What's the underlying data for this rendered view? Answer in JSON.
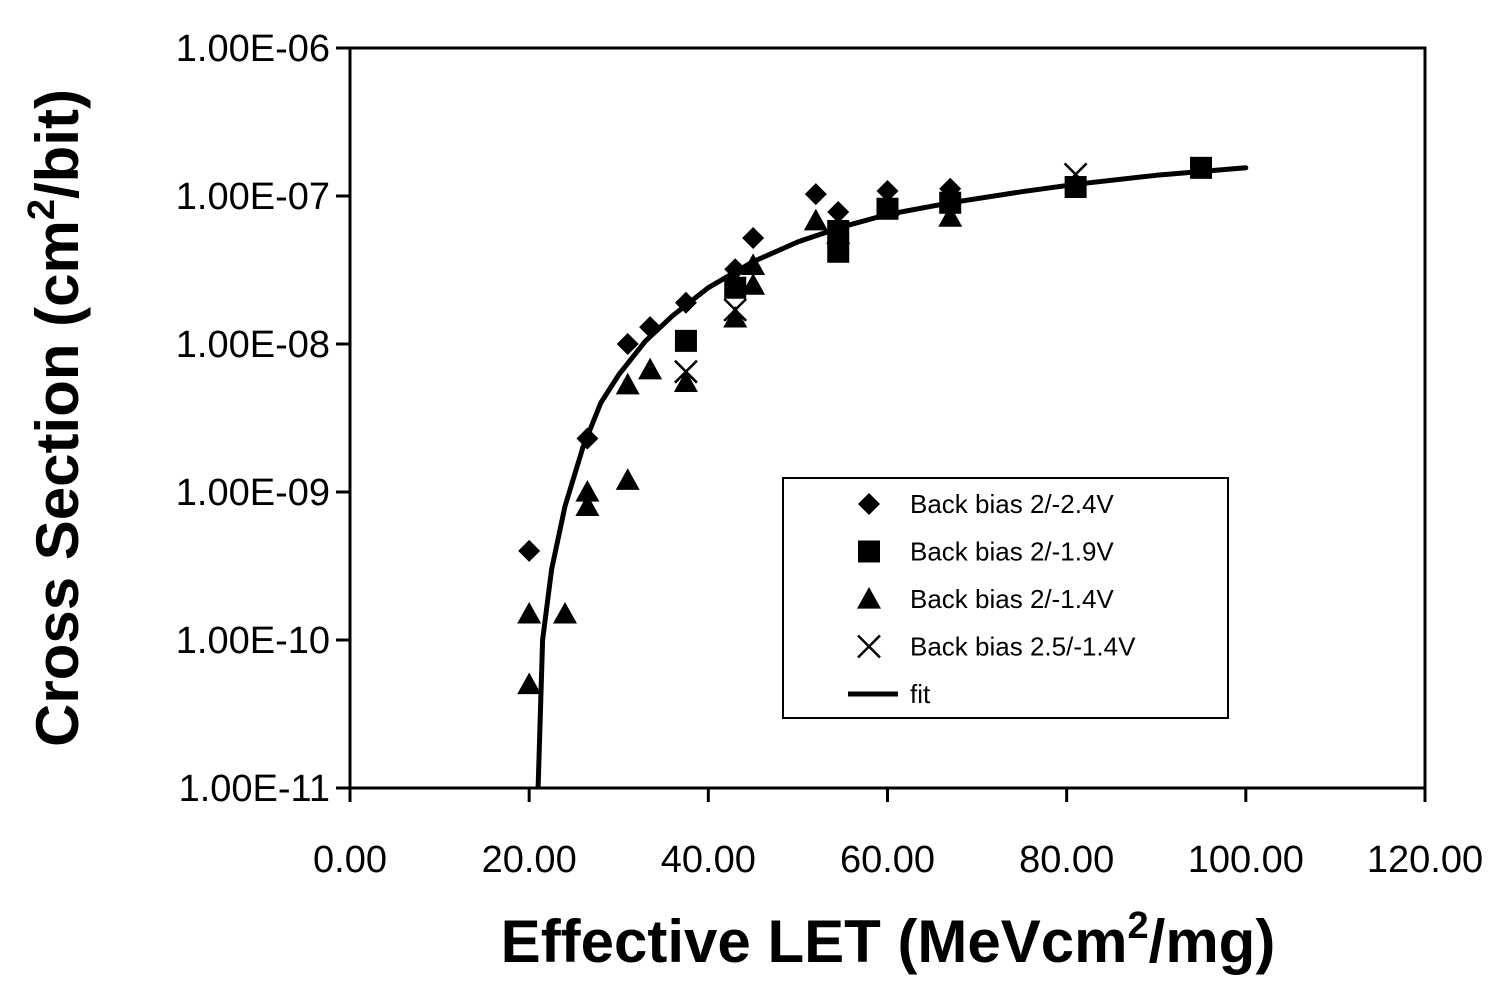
{
  "chart_data": {
    "type": "scatter",
    "title": "",
    "xlabel": {
      "main": "Effective LET (MeVcm",
      "sup": "2",
      "tail": "/mg)"
    },
    "ylabel": {
      "main": "Cross Section (cm",
      "sup": "2",
      "tail": "/bit)"
    },
    "xlim": [
      0,
      120
    ],
    "ylim": [
      1e-11,
      1e-06
    ],
    "y_scale": "log",
    "grid": false,
    "x_ticks": [
      0,
      20,
      40,
      60,
      80,
      100,
      120
    ],
    "x_tick_labels": [
      "0.00",
      "20.00",
      "40.00",
      "60.00",
      "80.00",
      "100.00",
      "120.00"
    ],
    "y_ticks": [
      1e-11,
      1e-10,
      1e-09,
      1e-08,
      1e-07,
      1e-06
    ],
    "y_tick_labels": [
      "1.00E-11",
      "1.00E-10",
      "1.00E-09",
      "1.00E-08",
      "1.00E-07",
      "1.00E-06"
    ],
    "legend_position": "lower-right",
    "series": [
      {
        "name": "Back bias 2/-2.4V",
        "marker": "diamond",
        "points": [
          [
            20,
            4e-10
          ],
          [
            26.5,
            2.3e-09
          ],
          [
            31,
            1e-08
          ],
          [
            33.5,
            1.3e-08
          ],
          [
            37.5,
            1.9e-08
          ],
          [
            43,
            3.2e-08
          ],
          [
            45,
            5.2e-08
          ],
          [
            52,
            1.03e-07
          ],
          [
            54.5,
            7.8e-08
          ],
          [
            60,
            1.08e-07
          ],
          [
            67,
            1.12e-07
          ]
        ]
      },
      {
        "name": "Back bias 2/-1.9V",
        "marker": "square",
        "points": [
          [
            37.5,
            1.05e-08
          ],
          [
            43,
            2.4e-08
          ],
          [
            54.5,
            4.2e-08
          ],
          [
            54.5,
            5.8e-08
          ],
          [
            60,
            8.2e-08
          ],
          [
            67,
            9e-08
          ],
          [
            81,
            1.15e-07
          ],
          [
            95,
            1.55e-07
          ]
        ]
      },
      {
        "name": "Back bias 2/-1.4V",
        "marker": "triangle",
        "points": [
          [
            20,
            1.5e-10
          ],
          [
            20,
            5e-11
          ],
          [
            24,
            1.5e-10
          ],
          [
            26.5,
            1e-09
          ],
          [
            26.5,
            8e-10
          ],
          [
            31,
            1.2e-09
          ],
          [
            31,
            5.3e-09
          ],
          [
            33.5,
            6.7e-09
          ],
          [
            37.5,
            5.5e-09
          ],
          [
            43,
            1.5e-08
          ],
          [
            45,
            2.5e-08
          ],
          [
            45,
            3.4e-08
          ],
          [
            52,
            6.8e-08
          ],
          [
            54.5,
            5.5e-08
          ],
          [
            60,
            8.5e-08
          ],
          [
            67,
            7.2e-08
          ]
        ]
      },
      {
        "name": "Back bias 2.5/-1.4V",
        "marker": "x",
        "points": [
          [
            37.5,
            6.5e-09
          ],
          [
            43,
            1.7e-08
          ],
          [
            81,
            1.4e-07
          ]
        ]
      },
      {
        "name": "fit",
        "marker": "line",
        "points": [
          [
            21,
            1e-11
          ],
          [
            21.5,
            1e-10
          ],
          [
            22.5,
            3e-10
          ],
          [
            24,
            8e-10
          ],
          [
            26,
            2e-09
          ],
          [
            28,
            4e-09
          ],
          [
            30,
            6.2e-09
          ],
          [
            33,
            1.05e-08
          ],
          [
            36,
            1.55e-08
          ],
          [
            40,
            2.4e-08
          ],
          [
            45,
            3.6e-08
          ],
          [
            50,
            4.9e-08
          ],
          [
            55,
            6.2e-08
          ],
          [
            60,
            7.5e-08
          ],
          [
            67,
            9e-08
          ],
          [
            75,
            1.07e-07
          ],
          [
            81,
            1.2e-07
          ],
          [
            90,
            1.38e-07
          ],
          [
            100,
            1.55e-07
          ]
        ]
      }
    ]
  }
}
